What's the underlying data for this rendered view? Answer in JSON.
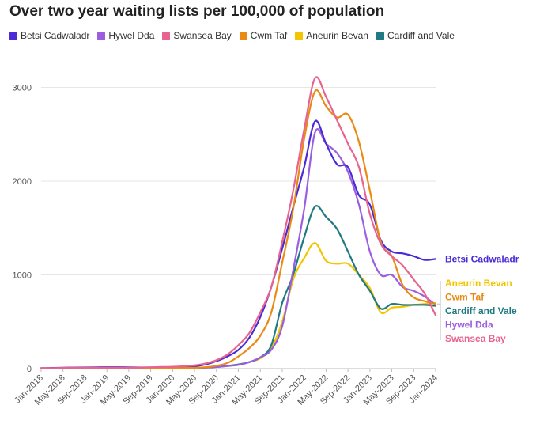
{
  "colors": {
    "betsi": "#4a2bd6",
    "hywel": "#9b5ee0",
    "swansea": "#e8638d",
    "cwm": "#e88a14",
    "aneurin": "#f2c500",
    "cardiff": "#217a82"
  },
  "chart_data": {
    "type": "line",
    "title": "Over two year waiting lists per 100,000 of population",
    "ylim": [
      0,
      3300
    ],
    "y_ticks": [
      0,
      1000,
      2000,
      3000
    ],
    "y_tick_labels": [
      "0",
      "1000",
      "2000",
      "3000"
    ],
    "x_tick_labels": [
      "Jan-2018",
      "May-2018",
      "Sep-2018",
      "Jan-2019",
      "May-2019",
      "Sep-2019",
      "Jan-2020",
      "May-2020",
      "Sep-2020",
      "Jan-2021",
      "May-2021",
      "Sep-2021",
      "Jan-2022",
      "May-2022",
      "Sep-2022",
      "Jan-2023",
      "May-2023",
      "Sep-2023",
      "Jan-2024"
    ],
    "grid": true,
    "legend_position": "top",
    "x": [
      "2018-01",
      "2018-03",
      "2018-05",
      "2018-07",
      "2018-09",
      "2018-11",
      "2019-01",
      "2019-03",
      "2019-05",
      "2019-07",
      "2019-09",
      "2019-11",
      "2020-01",
      "2020-03",
      "2020-05",
      "2020-07",
      "2020-09",
      "2020-11",
      "2021-01",
      "2021-03",
      "2021-05",
      "2021-07",
      "2021-09",
      "2021-11",
      "2022-01",
      "2022-03",
      "2022-05",
      "2022-07",
      "2022-09",
      "2022-11",
      "2023-01",
      "2023-03",
      "2023-05",
      "2023-07",
      "2023-09",
      "2023-11",
      "2024-01"
    ],
    "series": [
      {
        "name": "Betsi Cadwaladr",
        "key": "betsi",
        "values": [
          5,
          8,
          10,
          12,
          13,
          14,
          15,
          15,
          14,
          13,
          12,
          12,
          12,
          15,
          25,
          45,
          80,
          130,
          200,
          330,
          550,
          870,
          1280,
          1720,
          2150,
          2640,
          2400,
          2180,
          2150,
          1850,
          1750,
          1370,
          1250,
          1230,
          1200,
          1160,
          1170
        ]
      },
      {
        "name": "Hywel Dda",
        "key": "hywel",
        "values": [
          3,
          3,
          4,
          5,
          5,
          5,
          6,
          6,
          6,
          6,
          6,
          6,
          6,
          7,
          10,
          12,
          18,
          28,
          40,
          70,
          120,
          200,
          450,
          1050,
          1700,
          2520,
          2400,
          2300,
          2100,
          1750,
          1250,
          1000,
          1000,
          870,
          830,
          770,
          680
        ]
      },
      {
        "name": "Swansea Bay",
        "key": "swansea",
        "values": [
          5,
          6,
          8,
          10,
          10,
          10,
          10,
          10,
          10,
          12,
          15,
          18,
          20,
          25,
          35,
          55,
          90,
          150,
          250,
          380,
          600,
          870,
          1350,
          1900,
          2550,
          3100,
          2900,
          2650,
          2400,
          2150,
          1650,
          1330,
          1200,
          1100,
          950,
          800,
          570
        ]
      },
      {
        "name": "Cwm Taf",
        "key": "cwm",
        "values": [
          2,
          2,
          3,
          3,
          4,
          4,
          5,
          5,
          5,
          5,
          5,
          5,
          6,
          7,
          9,
          15,
          30,
          60,
          130,
          220,
          350,
          600,
          1130,
          1700,
          2450,
          2960,
          2800,
          2680,
          2710,
          2420,
          1900,
          1350,
          1200,
          890,
          760,
          720,
          690
        ]
      },
      {
        "name": "Aneurin Bevan",
        "key": "aneurin",
        "values": [
          2,
          2,
          3,
          3,
          3,
          4,
          4,
          4,
          5,
          5,
          5,
          5,
          6,
          7,
          9,
          12,
          18,
          30,
          45,
          70,
          110,
          220,
          500,
          950,
          1180,
          1340,
          1150,
          1120,
          1120,
          1000,
          860,
          600,
          650,
          660,
          680,
          690,
          700
        ]
      },
      {
        "name": "Cardiff and Vale",
        "key": "cardiff",
        "values": [
          3,
          3,
          4,
          4,
          5,
          5,
          5,
          5,
          5,
          5,
          5,
          6,
          6,
          7,
          9,
          12,
          18,
          28,
          45,
          70,
          120,
          250,
          700,
          1000,
          1400,
          1730,
          1620,
          1490,
          1250,
          1000,
          830,
          640,
          690,
          680,
          680,
          680,
          670
        ]
      }
    ],
    "end_labels_order": [
      "Betsi Cadwaladr",
      "Aneurin Bevan",
      "Cwm Taf",
      "Cardiff and Vale",
      "Hywel Dda",
      "Swansea Bay"
    ]
  }
}
